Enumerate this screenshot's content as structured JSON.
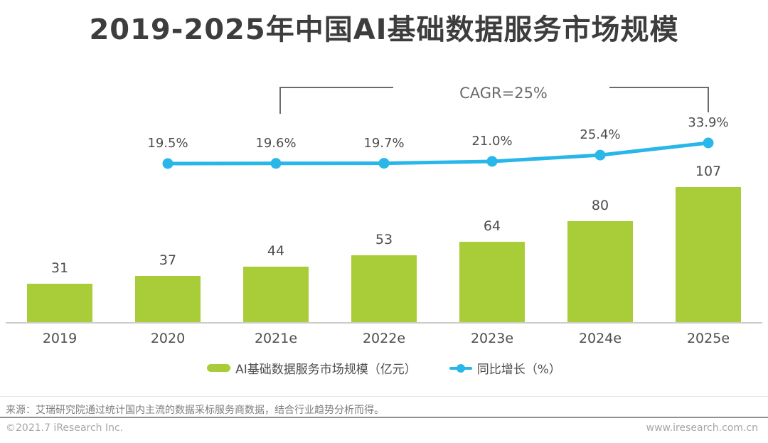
{
  "title": "2019-2025年中国AI基础数据服务市场规模",
  "chart_data": {
    "type": "bar",
    "combo": "bar+line",
    "title": "2019-2025年中国AI基础数据服务市场规模",
    "categories": [
      "2019",
      "2020",
      "2021e",
      "2022e",
      "2023e",
      "2024e",
      "2025e"
    ],
    "series": [
      {
        "name": "AI基础数据服务市场规模（亿元）",
        "type": "bar",
        "values": [
          31,
          37,
          44,
          53,
          64,
          80,
          107
        ]
      },
      {
        "name": "同比增长（%）",
        "type": "line",
        "categories": [
          "2020",
          "2021e",
          "2022e",
          "2023e",
          "2024e",
          "2025e"
        ],
        "values": [
          19.5,
          19.6,
          19.7,
          21.0,
          25.4,
          33.9
        ]
      }
    ],
    "annotations": {
      "cagr": {
        "label": "CAGR=25%",
        "from": "2021e",
        "to": "2025e"
      }
    },
    "xlabel": "",
    "ylabel": "",
    "grid": false,
    "value_labels": true,
    "legend_position": "bottom"
  },
  "legend": {
    "bar_label": "AI基础数据服务市场规模（亿元）",
    "line_label": "同比增长（%）"
  },
  "footer": {
    "source": "来源：艾瑞研究院通过统计国内主流的数据采标服务商数据，结合行业趋势分析而得。",
    "copyright": "©2021.7 iResearch Inc.",
    "website": "www.iresearch.com.cn"
  },
  "colors": {
    "bar": "#a9cd38",
    "line": "#29b6e8",
    "title_text": "#3d3d3d",
    "label_text": "#4d4d4d",
    "bracket": "#6b6b6b",
    "axis": "#cbcbcb",
    "footer_text": "#a6a6a6"
  }
}
